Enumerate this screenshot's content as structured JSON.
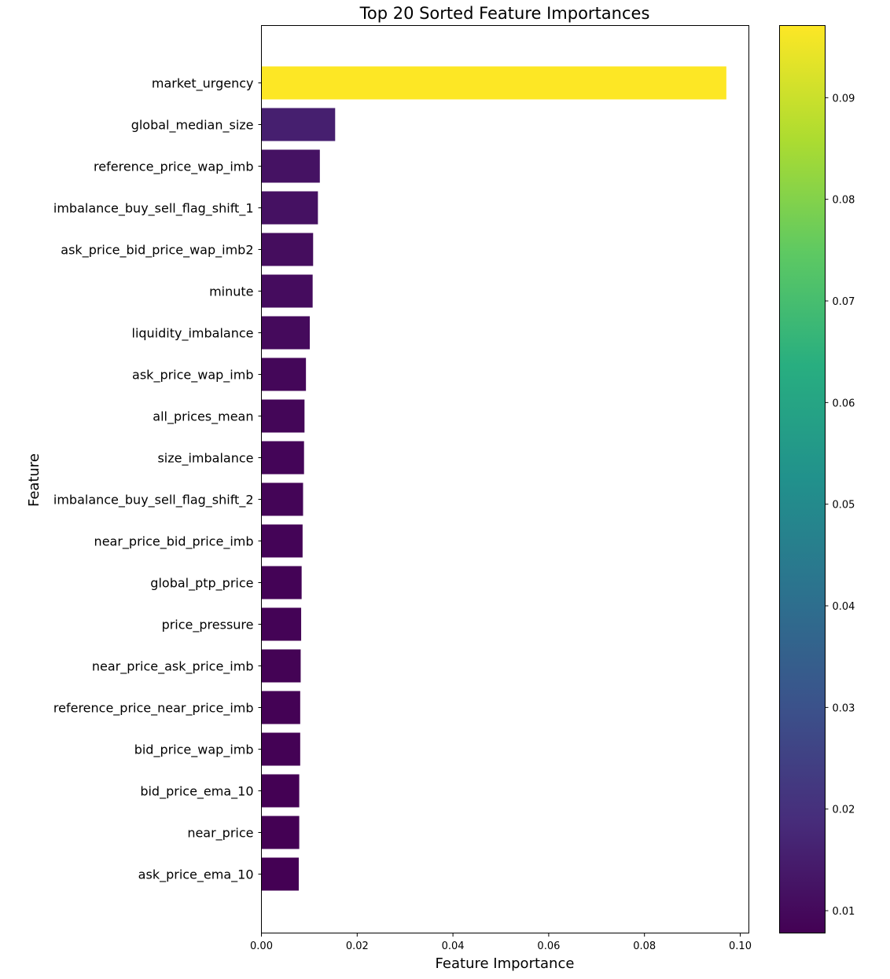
{
  "chart_data": {
    "type": "bar",
    "orientation": "horizontal",
    "title": "Top 20 Sorted Feature Importances",
    "xlabel": "Feature Importance",
    "ylabel": "Feature",
    "xlim": [
      0,
      0.102
    ],
    "xticks": [
      "0.00",
      "0.02",
      "0.04",
      "0.06",
      "0.08",
      "0.10"
    ],
    "grid": false,
    "colormap": "viridis",
    "colorbar": {
      "range": [
        0.0078,
        0.0971
      ],
      "ticks": [
        "0.01",
        "0.02",
        "0.03",
        "0.04",
        "0.05",
        "0.06",
        "0.07",
        "0.08",
        "0.09"
      ]
    },
    "categories": [
      "market_urgency",
      "global_median_size",
      "reference_price_wap_imb",
      "imbalance_buy_sell_flag_shift_1",
      "ask_price_bid_price_wap_imb2",
      "minute",
      "liquidity_imbalance",
      "ask_price_wap_imb",
      "all_prices_mean",
      "size_imbalance",
      "imbalance_buy_sell_flag_shift_2",
      "near_price_bid_price_imb",
      "global_ptp_price",
      "price_pressure",
      "near_price_ask_price_imb",
      "reference_price_near_price_imb",
      "bid_price_wap_imb",
      "bid_price_ema_10",
      "near_price",
      "ask_price_ema_10"
    ],
    "values": [
      0.0971,
      0.0154,
      0.0122,
      0.0118,
      0.0108,
      0.0107,
      0.0101,
      0.0093,
      0.009,
      0.0089,
      0.0087,
      0.0086,
      0.0084,
      0.0083,
      0.0082,
      0.0081,
      0.0081,
      0.0079,
      0.0079,
      0.0078
    ]
  }
}
